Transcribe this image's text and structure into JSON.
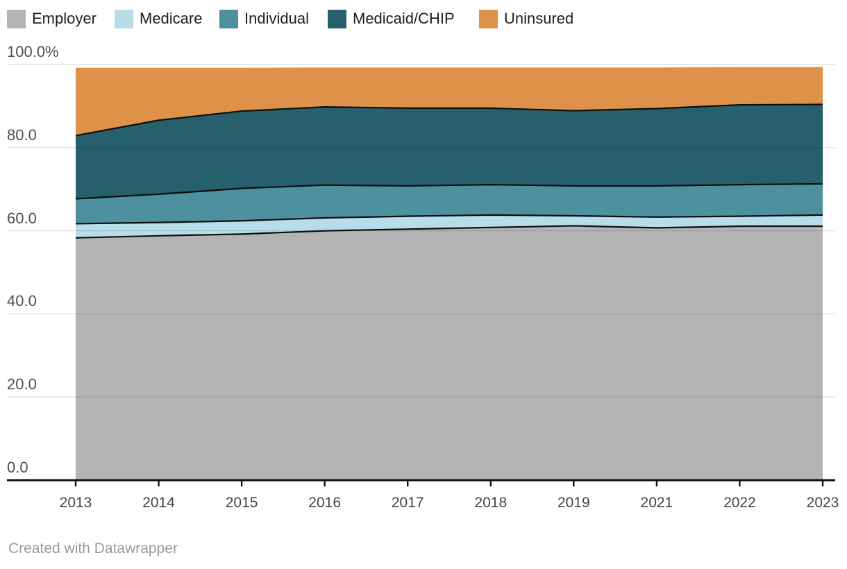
{
  "chart_data": {
    "type": "area",
    "stacked": true,
    "unit": "percent",
    "title": "",
    "xlabel": "",
    "ylabel": "",
    "categories": [
      "2013",
      "2014",
      "2015",
      "2016",
      "2017",
      "2018",
      "2019",
      "2021",
      "2022",
      "2023"
    ],
    "series": [
      {
        "name": "Employer",
        "color": "#b4b4b6",
        "values": [
          58.3,
          58.8,
          59.2,
          60.0,
          60.4,
          60.8,
          61.2,
          60.7,
          61.1,
          61.1
        ]
      },
      {
        "name": "Medicare",
        "color": "#b7dde9",
        "values": [
          3.4,
          3.2,
          3.2,
          3.1,
          3.1,
          3.0,
          2.4,
          2.6,
          2.4,
          2.7
        ]
      },
      {
        "name": "Individual",
        "color": "#4d91a0",
        "values": [
          6.0,
          6.8,
          7.8,
          7.9,
          7.3,
          7.3,
          7.2,
          7.5,
          7.6,
          7.5
        ]
      },
      {
        "name": "Medicaid/CHIP",
        "color": "#26606d",
        "values": [
          15.2,
          17.8,
          18.6,
          18.8,
          18.7,
          18.4,
          18.1,
          18.6,
          19.2,
          19.1
        ]
      },
      {
        "name": "Uninsured",
        "color": "#de9249",
        "values": [
          16.3,
          12.6,
          10.4,
          9.5,
          9.8,
          9.8,
          10.4,
          9.9,
          9.1,
          9.0
        ]
      }
    ],
    "cumulative_tops": {
      "employer": [
        58.3,
        58.8,
        59.2,
        60.0,
        60.4,
        60.8,
        61.2,
        60.7,
        61.1,
        61.1
      ],
      "medicare": [
        61.7,
        62.0,
        62.4,
        63.1,
        63.5,
        63.8,
        63.6,
        63.3,
        63.5,
        63.8
      ],
      "individual": [
        67.7,
        68.8,
        70.2,
        71.0,
        70.8,
        71.1,
        70.8,
        70.8,
        71.1,
        71.3
      ],
      "medicaid": [
        82.9,
        86.6,
        88.8,
        89.8,
        89.5,
        89.5,
        88.9,
        89.4,
        90.3,
        90.4
      ],
      "uninsured": [
        99.2,
        99.2,
        99.2,
        99.3,
        99.3,
        99.3,
        99.3,
        99.3,
        99.4,
        99.4
      ]
    },
    "y_axis": {
      "ticks": [
        {
          "label": "0.0",
          "value": 0
        },
        {
          "label": "20.0",
          "value": 20
        },
        {
          "label": "40.0",
          "value": 40
        },
        {
          "label": "60.0",
          "value": 60
        },
        {
          "label": "80.0",
          "value": 80
        },
        {
          "label": "100.0%",
          "value": 100
        }
      ],
      "range": [
        0,
        100
      ],
      "grid": true
    },
    "legend_position": "top",
    "series_divider_color": "#0d0d0d",
    "grid_color": "#e0e0e0",
    "axis_color": "#111111"
  },
  "footer": {
    "credit": "Created with Datawrapper"
  }
}
